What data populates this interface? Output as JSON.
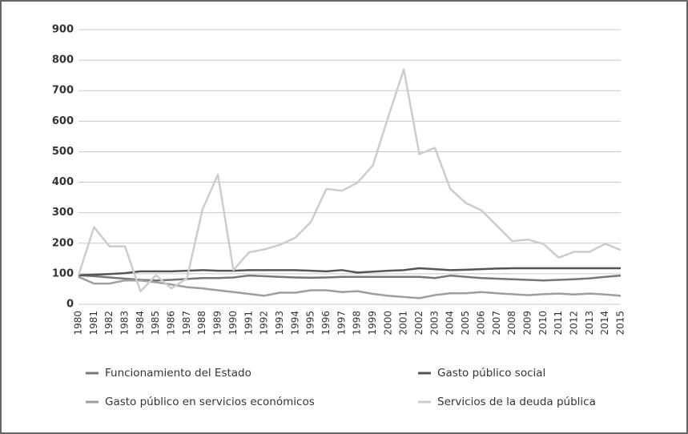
{
  "chart_data": {
    "type": "line",
    "categories": [
      "1980",
      "1981",
      "1982",
      "1983",
      "1984",
      "1985",
      "1986",
      "1987",
      "1988",
      "1989",
      "1990",
      "1991",
      "1992",
      "1993",
      "1994",
      "1995",
      "1996",
      "1997",
      "1998",
      "1999",
      "2000",
      "2001",
      "2002",
      "2003",
      "2004",
      "2005",
      "2006",
      "2007",
      "2008",
      "2009",
      "2010",
      "2011",
      "2012",
      "2013",
      "2014",
      "2015"
    ],
    "series": [
      {
        "name": "Funcionamiento del Estado",
        "color": "#777777",
        "values": [
          95,
          92,
          88,
          84,
          80,
          78,
          80,
          83,
          86,
          86,
          88,
          94,
          92,
          90,
          88,
          87,
          88,
          90,
          90,
          90,
          90,
          90,
          90,
          86,
          94,
          90,
          86,
          84,
          82,
          80,
          78,
          80,
          82,
          85,
          90,
          94
        ]
      },
      {
        "name": "Gasto público social",
        "color": "#555555",
        "values": [
          95,
          97,
          99,
          102,
          108,
          108,
          108,
          110,
          112,
          110,
          110,
          112,
          112,
          112,
          112,
          110,
          108,
          112,
          104,
          107,
          110,
          112,
          118,
          115,
          112,
          113,
          115,
          117,
          118,
          118,
          118,
          118,
          118,
          118,
          118,
          118
        ]
      },
      {
        "name": "Gasto público en servicios económicos",
        "color": "#9e9e9e",
        "values": [
          90,
          68,
          68,
          78,
          78,
          72,
          65,
          56,
          52,
          46,
          40,
          34,
          28,
          38,
          38,
          46,
          46,
          40,
          43,
          34,
          28,
          24,
          20,
          30,
          36,
          36,
          40,
          36,
          33,
          30,
          33,
          35,
          32,
          35,
          32,
          28
        ]
      },
      {
        "name": "Servicios de la deuda pública",
        "color": "#cccccc",
        "values": [
          95,
          253,
          190,
          190,
          42,
          95,
          52,
          85,
          310,
          425,
          112,
          170,
          180,
          195,
          218,
          270,
          378,
          372,
          398,
          455,
          615,
          770,
          492,
          513,
          378,
          332,
          308,
          258,
          207,
          212,
          198,
          153,
          172,
          172,
          198,
          178
        ]
      }
    ],
    "ylim": [
      0,
      900
    ],
    "yticks": [
      0,
      100,
      200,
      300,
      400,
      500,
      600,
      700,
      800,
      900
    ],
    "grid": true
  }
}
